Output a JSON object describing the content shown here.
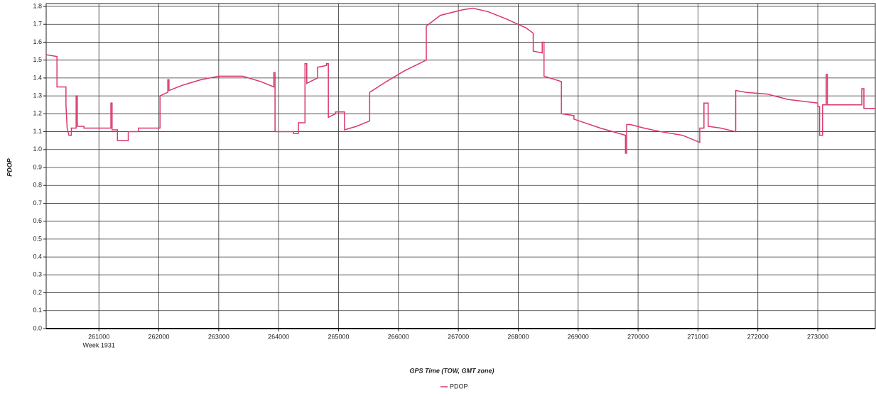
{
  "chart_data": {
    "type": "line",
    "y_label": "PDOP",
    "x_label": "GPS Time (TOW, GMT zone)",
    "annotation": "Week 1931",
    "x": [
      260120,
      260300,
      260300,
      260450,
      260450,
      260470,
      260500,
      260540,
      260540,
      260620,
      260620,
      260640,
      260640,
      260750,
      260750,
      261200,
      261200,
      261220,
      261220,
      261310,
      261310,
      261490,
      261490,
      261660,
      261660,
      262020,
      262020,
      262150,
      262150,
      262170,
      262170,
      262400,
      262700,
      263000,
      263400,
      263700,
      263920,
      263920,
      263940,
      263940,
      264250,
      264250,
      264330,
      264330,
      264440,
      264440,
      264470,
      264470,
      264650,
      264650,
      264800,
      264800,
      264830,
      264830,
      264950,
      264950,
      265100,
      265100,
      265300,
      265520,
      265520,
      265800,
      266100,
      266465,
      266465,
      266700,
      267060,
      267240,
      267500,
      267800,
      268130,
      268250,
      268250,
      268400,
      268400,
      268430,
      268430,
      268720,
      268720,
      268930,
      268930,
      269370,
      269790,
      269790,
      269810,
      269810,
      269870,
      270100,
      270380,
      270740,
      271030,
      271030,
      271100,
      271100,
      271170,
      271170,
      271380,
      271630,
      271630,
      271800,
      272160,
      272500,
      273000,
      273000,
      273030,
      273030,
      273080,
      273080,
      273140,
      273140,
      273160,
      273160,
      273735,
      273735,
      273770,
      273770,
      273960
    ],
    "series": [
      {
        "name": "PDOP",
        "color": "#d9386a",
        "values": [
          1.53,
          1.52,
          1.35,
          1.35,
          1.25,
          1.12,
          1.08,
          1.08,
          1.12,
          1.12,
          1.3,
          1.3,
          1.13,
          1.13,
          1.12,
          1.12,
          1.26,
          1.26,
          1.11,
          1.11,
          1.05,
          1.05,
          1.1,
          1.1,
          1.12,
          1.12,
          1.3,
          1.32,
          1.39,
          1.39,
          1.33,
          1.36,
          1.39,
          1.41,
          1.41,
          1.38,
          1.35,
          1.43,
          1.43,
          1.1,
          1.1,
          1.09,
          1.09,
          1.15,
          1.15,
          1.48,
          1.48,
          1.37,
          1.4,
          1.46,
          1.47,
          1.48,
          1.48,
          1.18,
          1.2,
          1.21,
          1.21,
          1.11,
          1.13,
          1.16,
          1.32,
          1.38,
          1.44,
          1.5,
          1.69,
          1.75,
          1.78,
          1.79,
          1.77,
          1.73,
          1.68,
          1.65,
          1.55,
          1.54,
          1.6,
          1.6,
          1.41,
          1.38,
          1.2,
          1.19,
          1.17,
          1.12,
          1.08,
          0.98,
          0.98,
          1.14,
          1.14,
          1.12,
          1.1,
          1.08,
          1.04,
          1.12,
          1.12,
          1.26,
          1.26,
          1.13,
          1.12,
          1.1,
          1.33,
          1.32,
          1.31,
          1.28,
          1.26,
          1.24,
          1.24,
          1.08,
          1.08,
          1.25,
          1.25,
          1.42,
          1.42,
          1.25,
          1.25,
          1.34,
          1.34,
          1.23,
          1.23
        ]
      }
    ],
    "xlim": [
      260120,
      273960
    ],
    "xticks": [
      261000,
      262000,
      263000,
      264000,
      265000,
      266000,
      267000,
      268000,
      269000,
      270000,
      271000,
      272000,
      273000
    ],
    "ylim": [
      0,
      1.8
    ],
    "yticks": [
      {
        "value": 0,
        "label": "0.0"
      },
      0.1,
      0.2,
      0.3,
      0.4,
      0.5,
      0.6,
      0.7,
      0.8,
      0.9,
      {
        "value": 1,
        "label": "1.0"
      },
      1.1,
      1.2,
      1.3,
      1.4,
      1.5,
      1.6,
      1.7,
      1.8
    ],
    "grid": true
  }
}
